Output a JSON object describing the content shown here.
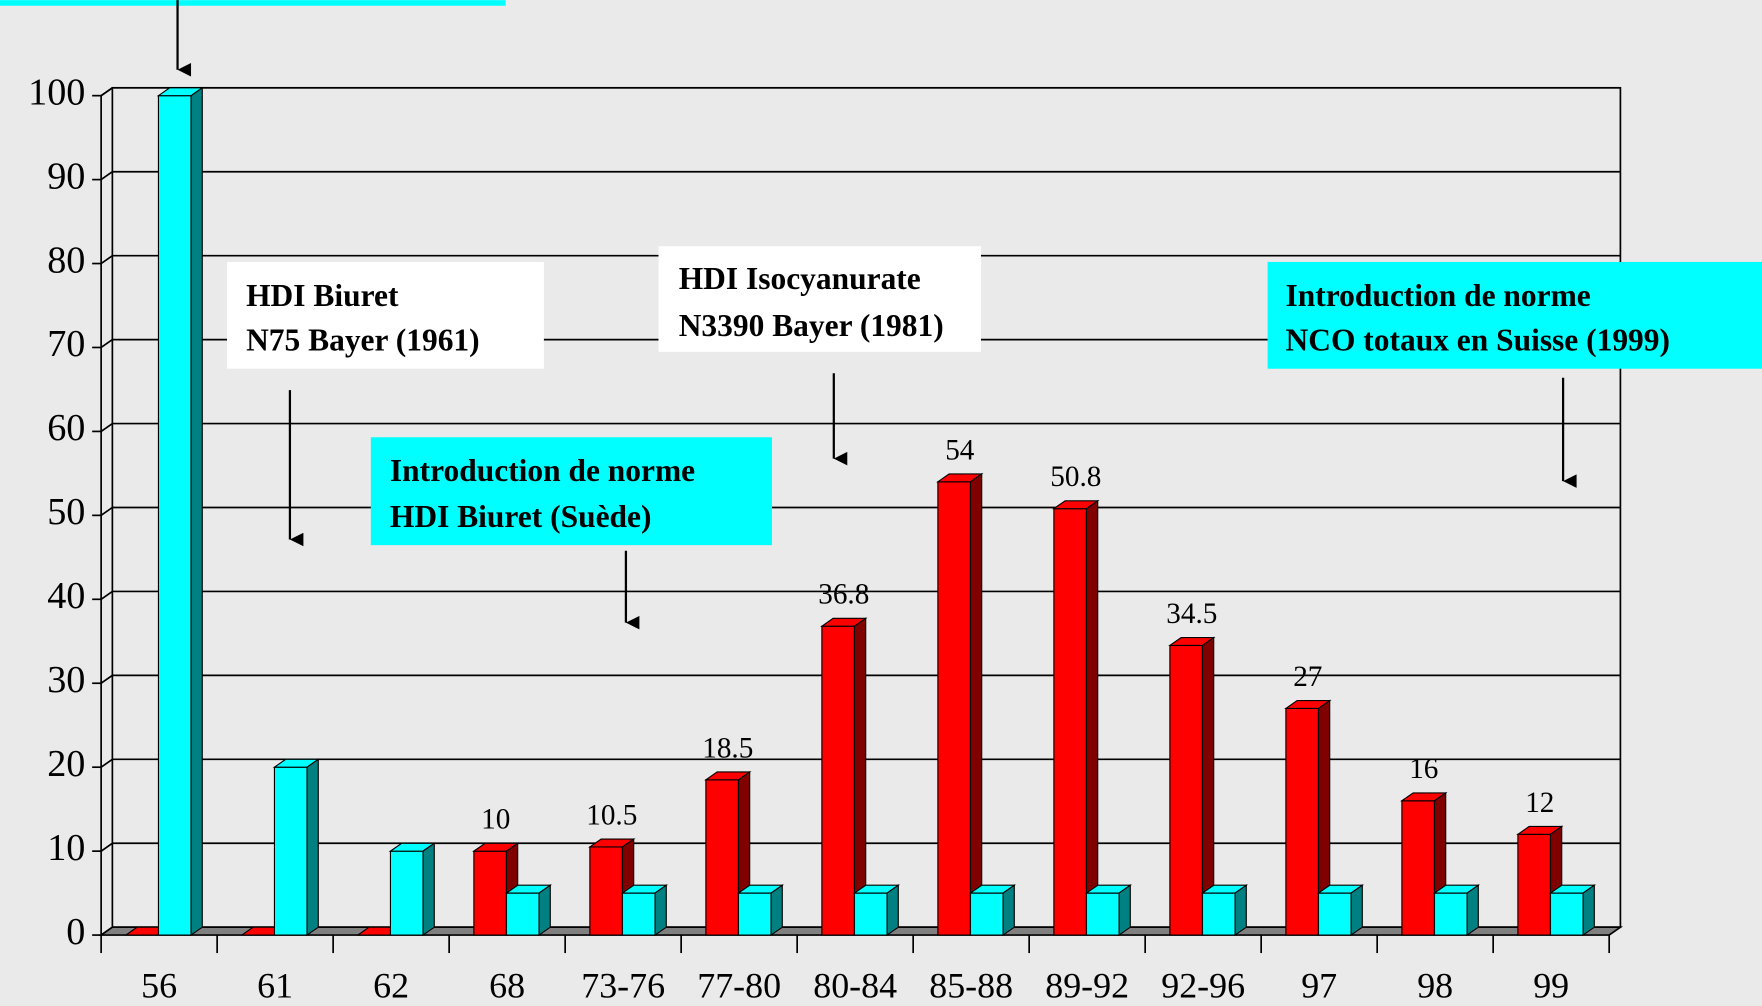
{
  "chart_data": {
    "type": "bar3d",
    "categories": [
      "56",
      "61",
      "62",
      "68",
      "73-76",
      "77-80",
      "80-84",
      "85-88",
      "89-92",
      "92-96",
      "97",
      "98",
      "99"
    ],
    "series": [
      {
        "color": "#ff0000",
        "values": [
          0,
          0,
          0,
          10,
          10.5,
          18.5,
          36.8,
          54,
          50.8,
          34.5,
          27,
          16,
          12
        ],
        "value_labels": [
          null,
          null,
          null,
          "10",
          "10.5",
          "18.5",
          "36.8",
          "54",
          "50.8",
          "34.5",
          "27",
          "16",
          "12"
        ]
      },
      {
        "color": "#00ffff",
        "values": [
          100,
          20,
          10,
          5,
          5,
          5,
          5,
          5,
          5,
          5,
          5,
          5,
          5
        ]
      }
    ],
    "ylim": [
      0,
      100
    ],
    "yticks": [
      0,
      10,
      20,
      30,
      40,
      50,
      60,
      70,
      80,
      90,
      100
    ],
    "grid": true,
    "annotations": [
      {
        "lines": [
          "HDI Biuret",
          "N75 Bayer (1961)"
        ],
        "color": "#ffffff"
      },
      {
        "lines": [
          "HDI Isocyanurate",
          "N3390 Bayer (1981)"
        ],
        "color": "#ffffff"
      },
      {
        "lines": [
          "Introduction de norme",
          "HDI Biuret (Suède)"
        ],
        "color": "#00ffff"
      },
      {
        "lines": [
          "Introduction de norme",
          "NCO totaux en Suisse (1999)"
        ],
        "color": "#00ffff"
      }
    ]
  }
}
